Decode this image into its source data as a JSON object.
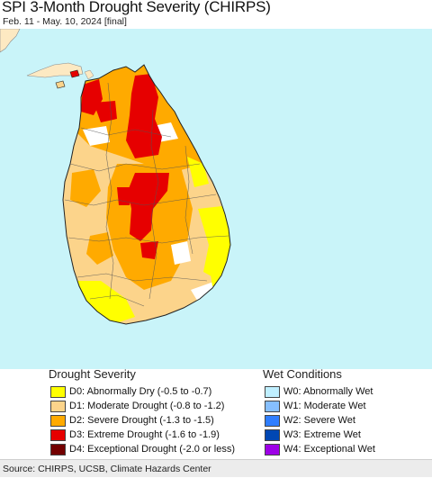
{
  "header": {
    "title": "SPI 3-Month Drought Severity (CHIRPS)",
    "subtitle": "Feb. 11 - May. 10, 2024 [final]"
  },
  "colors": {
    "ocean": "#c9f4f9",
    "neighbor_land": "#fde9c2",
    "normal": "#ffffff",
    "d0": "#ffff00",
    "d1": "#fcd48b",
    "d2": "#ffaa00",
    "d3": "#e60000",
    "d4": "#730000",
    "w0": "#bfefff",
    "w1": "#86bfff",
    "w2": "#2f7eff",
    "w3": "#0047b3",
    "w4": "#9d00e6"
  },
  "legend": {
    "drought_title": "Drought Severity",
    "drought_items": [
      {
        "code": "d0",
        "label": "D0: Abnormally Dry (-0.5 to -0.7)"
      },
      {
        "code": "d1",
        "label": "D1: Moderate Drought (-0.8 to -1.2)"
      },
      {
        "code": "d2",
        "label": "D2: Severe Drought (-1.3 to -1.5)"
      },
      {
        "code": "d3",
        "label": "D3: Extreme Drought (-1.6 to -1.9)"
      },
      {
        "code": "d4",
        "label": "D4: Exceptional Drought (-2.0 or less)"
      }
    ],
    "wet_title": "Wet Conditions",
    "wet_items": [
      {
        "code": "w0",
        "label": "W0: Abnormally Wet"
      },
      {
        "code": "w1",
        "label": "W1: Moderate Wet"
      },
      {
        "code": "w2",
        "label": "W2: Severe Wet"
      },
      {
        "code": "w3",
        "label": "W3: Extreme Wet"
      },
      {
        "code": "w4",
        "label": "W4: Exceptional Wet"
      }
    ]
  },
  "footer": {
    "source": "Source: CHIRPS, UCSB, Climate Hazards Center"
  }
}
